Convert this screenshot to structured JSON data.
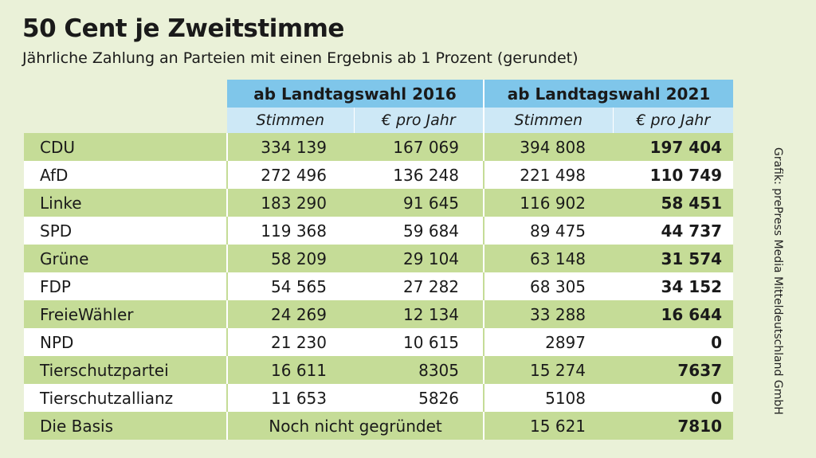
{
  "title": "50 Cent je Zweitstimme",
  "subtitle": "Jährliche Zahlung an Parteien mit einen Ergebnis ab 1 Prozent (gerundet)",
  "credit": "Grafik: prePress Media Mitteldeutschland GmbH",
  "colors": {
    "header_dark": "#7fc6ea",
    "header_light": "#cde8f6",
    "row_green": "#c5dc97",
    "row_white": "#ffffff",
    "background": "#eaf1d8"
  },
  "chart_data": {
    "type": "table",
    "column_groups": [
      "ab Landtagswahl 2016",
      "ab Landtagswahl 2021"
    ],
    "subcolumns": [
      "Stimmen",
      "€ pro Jahr",
      "Stimmen",
      "€ pro Jahr"
    ],
    "rows": [
      {
        "party": "CDU",
        "votes_2016": "334 139",
        "euro_2016": "167 069",
        "votes_2021": "394 808",
        "euro_2021": "197 404"
      },
      {
        "party": "AfD",
        "votes_2016": "272 496",
        "euro_2016": "136 248",
        "votes_2021": "221 498",
        "euro_2021": "110 749"
      },
      {
        "party": "Linke",
        "votes_2016": "183 290",
        "euro_2016": "91 645",
        "votes_2021": "116 902",
        "euro_2021": "58 451"
      },
      {
        "party": "SPD",
        "votes_2016": "119 368",
        "euro_2016": "59 684",
        "votes_2021": "89 475",
        "euro_2021": "44 737"
      },
      {
        "party": "Grüne",
        "votes_2016": "58 209",
        "euro_2016": "29 104",
        "votes_2021": "63 148",
        "euro_2021": "31 574"
      },
      {
        "party": "FDP",
        "votes_2016": "54 565",
        "euro_2016": "27 282",
        "votes_2021": "68 305",
        "euro_2021": "34 152"
      },
      {
        "party": "FreieWähler",
        "votes_2016": "24 269",
        "euro_2016": "12 134",
        "votes_2021": "33 288",
        "euro_2021": "16 644"
      },
      {
        "party": "NPD",
        "votes_2016": "21 230",
        "euro_2016": "10 615",
        "votes_2021": "2897",
        "euro_2021": "0"
      },
      {
        "party": "Tierschutzpartei",
        "votes_2016": "16 611",
        "euro_2016": "8305",
        "votes_2021": "15 274",
        "euro_2021": "7637"
      },
      {
        "party": "Tierschutzallianz",
        "votes_2016": "11 653",
        "euro_2016": "5826",
        "votes_2021": "5108",
        "euro_2021": "0"
      },
      {
        "party": "Die Basis",
        "note_2016": "Noch nicht gegründet",
        "votes_2021": "15 621",
        "euro_2021": "7810"
      }
    ]
  }
}
